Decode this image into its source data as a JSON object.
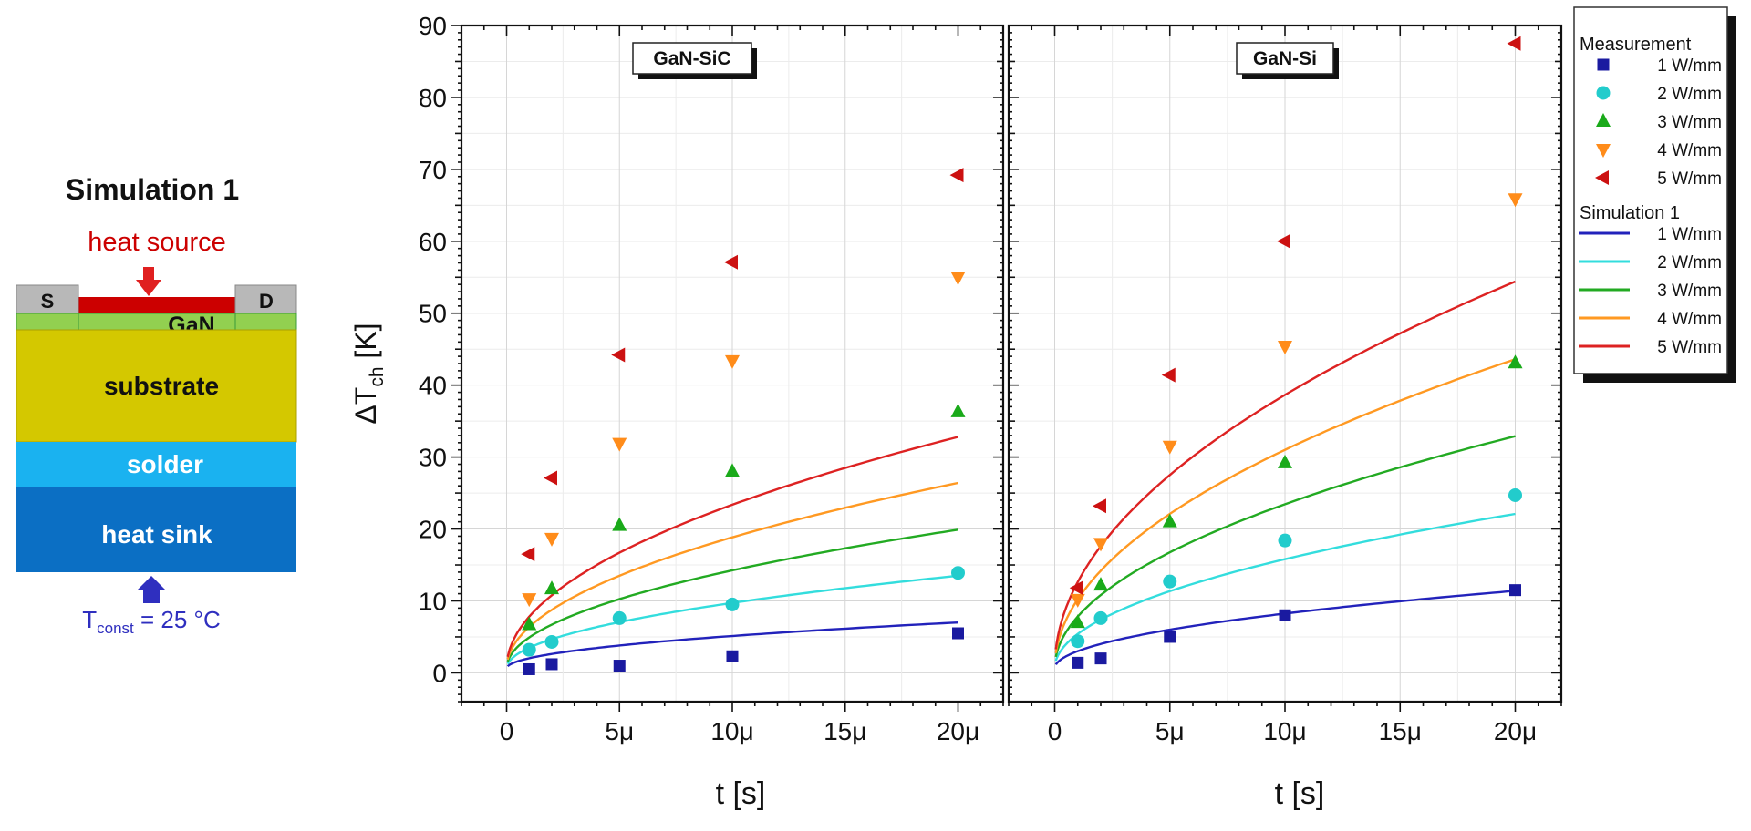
{
  "schematic": {
    "title": "Simulation 1",
    "heat_source_label": "heat source",
    "source_label": "S",
    "drain_label": "D",
    "gan_label": "GaN",
    "substrate_label": "substrate",
    "solder_label": "solder",
    "heatsink_label": "heat sink",
    "temp_label_T": "T",
    "temp_label_sub": "const",
    "temp_label_value": " = 25 °C",
    "colors": {
      "heat_source": "#cc0000",
      "contact": "#b8b8b8",
      "gan": "#92d050",
      "substrate": "#d4c800",
      "solder": "#1ab2f0",
      "heatsink": "#0b6fc4",
      "arrow_bottom": "#2f2fbf"
    }
  },
  "chart_data": {
    "type": "scatter",
    "xlabel": "t [s]",
    "ylabel": "ΔT",
    "ylabel_sub": "ch",
    "ylabel_unit": " [K]",
    "ylim": [
      -4,
      90
    ],
    "xlim": [
      -2,
      22
    ],
    "yticks": [
      0,
      10,
      20,
      30,
      40,
      50,
      60,
      70,
      80,
      90
    ],
    "xticks": [
      0,
      5,
      10,
      15,
      20
    ],
    "xtick_labels": [
      "0",
      "5μ",
      "10μ",
      "15μ",
      "20μ"
    ],
    "x_unit": "μs",
    "grid": true,
    "legend_position": "right",
    "legend": {
      "measurement_header": "Measurement",
      "simulation_header": "Simulation 1"
    },
    "series_styles": [
      {
        "name": "1 W/mm",
        "color": "#1a1aa0",
        "line_color": "#2222bb",
        "marker": "square"
      },
      {
        "name": "2 W/mm",
        "color": "#22cccc",
        "line_color": "#33dddd",
        "marker": "circle"
      },
      {
        "name": "3 W/mm",
        "color": "#1aaa1a",
        "line_color": "#22aa22",
        "marker": "triangle-up"
      },
      {
        "name": "4 W/mm",
        "color": "#ff8c1a",
        "line_color": "#ff9922",
        "marker": "triangle-down"
      },
      {
        "name": "5 W/mm",
        "color": "#cc1111",
        "line_color": "#dd2222",
        "marker": "triangle-left"
      }
    ],
    "panels": [
      {
        "title": "GaN-SiC",
        "measurement": [
          {
            "name": "1 W/mm",
            "x": [
              1,
              2,
              5,
              10,
              20
            ],
            "y": [
              0.5,
              1.2,
              1.0,
              2.3,
              5.5
            ]
          },
          {
            "name": "2 W/mm",
            "x": [
              1,
              2,
              5,
              10,
              20
            ],
            "y": [
              3.2,
              4.3,
              7.6,
              9.5,
              13.9
            ]
          },
          {
            "name": "3 W/mm",
            "x": [
              1,
              2,
              5,
              10,
              20
            ],
            "y": [
              6.7,
              11.7,
              20.5,
              28.0,
              36.3
            ]
          },
          {
            "name": "4 W/mm",
            "x": [
              1,
              2,
              5,
              10,
              20
            ],
            "y": [
              10.3,
              18.7,
              31.9,
              43.4,
              55.0
            ]
          },
          {
            "name": "5 W/mm",
            "x": [
              1,
              2,
              5,
              10,
              20
            ],
            "y": [
              16.5,
              27.1,
              44.2,
              57.1,
              69.2
            ]
          }
        ],
        "simulation": [
          {
            "name": "1 W/mm",
            "end_value": 6.4
          },
          {
            "name": "2 W/mm",
            "end_value": 12.9
          },
          {
            "name": "3 W/mm",
            "end_value": 19.3
          },
          {
            "name": "4 W/mm",
            "end_value": 25.8
          },
          {
            "name": "5 W/mm",
            "end_value": 32.2
          }
        ]
      },
      {
        "title": "GaN-Si",
        "measurement": [
          {
            "name": "1 W/mm",
            "x": [
              1,
              2,
              5,
              10,
              20
            ],
            "y": [
              1.4,
              2.0,
              5.0,
              8.0,
              11.5
            ]
          },
          {
            "name": "2 W/mm",
            "x": [
              1,
              2,
              5,
              10,
              20
            ],
            "y": [
              4.4,
              7.6,
              12.7,
              18.4,
              24.7
            ]
          },
          {
            "name": "3 W/mm",
            "x": [
              1,
              2,
              5,
              10,
              20
            ],
            "y": [
              7.0,
              12.2,
              21.0,
              29.2,
              43.1
            ]
          },
          {
            "name": "4 W/mm",
            "x": [
              1,
              2,
              5,
              10,
              20
            ],
            "y": [
              10.2,
              18.0,
              31.5,
              45.4,
              65.9
            ]
          },
          {
            "name": "5 W/mm",
            "x": [
              1,
              2,
              5,
              10,
              20
            ],
            "y": [
              11.8,
              23.2,
              41.4,
              60.0,
              87.5
            ]
          }
        ],
        "simulation": [
          {
            "name": "1 W/mm",
            "end_value": 10.8
          },
          {
            "name": "2 W/mm",
            "end_value": 21.5
          },
          {
            "name": "3 W/mm",
            "end_value": 32.3
          },
          {
            "name": "4 W/mm",
            "end_value": 43.0
          },
          {
            "name": "5 W/mm",
            "end_value": 53.8
          }
        ]
      }
    ]
  }
}
